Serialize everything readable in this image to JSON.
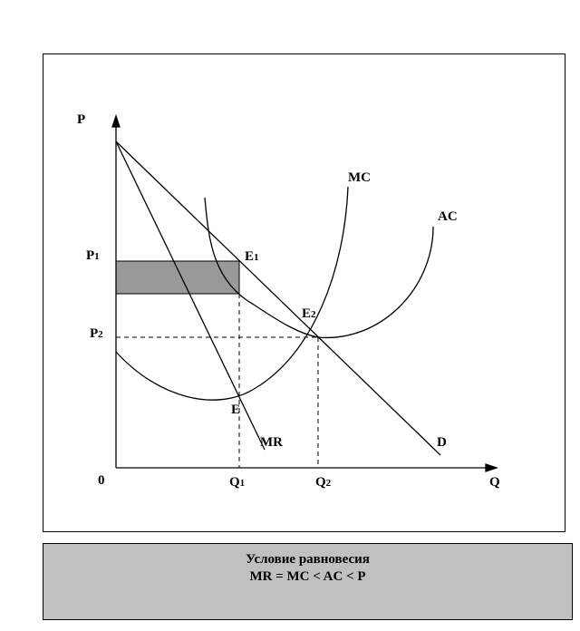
{
  "diagram": {
    "axis_y_label": "P",
    "axis_x_label": "Q",
    "origin_label": "0",
    "price_labels": [
      {
        "base": "P",
        "sub": "1"
      },
      {
        "base": "P",
        "sub": "2"
      }
    ],
    "quantity_labels": [
      {
        "base": "Q",
        "sub": "1"
      },
      {
        "base": "Q",
        "sub": "2"
      }
    ],
    "point_labels": [
      {
        "base": "E",
        "sub": "1"
      },
      {
        "base": "E",
        "sub": "2"
      },
      {
        "base": "E",
        "sub": ""
      }
    ],
    "curve_labels": {
      "mc": "MC",
      "ac": "AC",
      "mr": "MR",
      "d": "D"
    },
    "profit_area_color": "#999999"
  },
  "caption": {
    "line1": "Условие равновесия",
    "line2": "MR = MC < AC < P"
  }
}
